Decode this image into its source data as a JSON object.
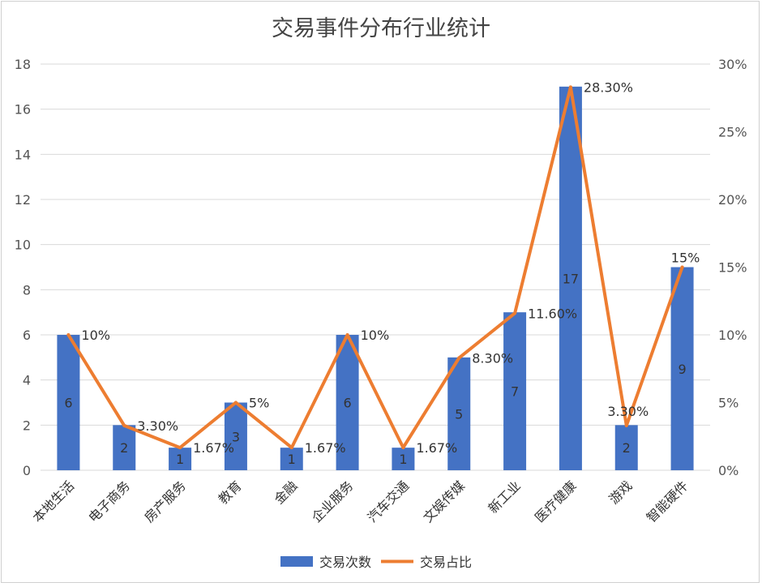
{
  "chart_data": {
    "type": "bar",
    "title": "交易事件分布行业统计",
    "categories": [
      "本地生活",
      "电子商务",
      "房产服务",
      "教育",
      "金融",
      "企业服务",
      "汽车交通",
      "文娱传媒",
      "新工业",
      "医疗健康",
      "游戏",
      "智能硬件"
    ],
    "series": [
      {
        "name": "交易次数",
        "type": "bar",
        "axis": "left",
        "color": "#4472C4",
        "values": [
          6,
          2,
          1,
          3,
          1,
          6,
          1,
          5,
          7,
          17,
          2,
          9
        ],
        "labels": [
          "6",
          "2",
          "1",
          "3",
          "1",
          "6",
          "1",
          "5",
          "7",
          "17",
          "2",
          "9"
        ]
      },
      {
        "name": "交易占比",
        "type": "line",
        "axis": "right",
        "color": "#ED7D31",
        "values": [
          10,
          3.3,
          1.67,
          5,
          1.67,
          10,
          1.67,
          8.3,
          11.6,
          28.3,
          3.3,
          15
        ],
        "labels": [
          "10%",
          "3.30%",
          "1.67%",
          "5%",
          "1.67%",
          "10%",
          "1.67%",
          "8.30%",
          "11.60%",
          "28.30%",
          "3.30%",
          "15%"
        ]
      }
    ],
    "y_left": {
      "min": 0,
      "max": 18,
      "ticks": [
        "0",
        "2",
        "4",
        "6",
        "8",
        "10",
        "12",
        "14",
        "16",
        "18"
      ]
    },
    "y_right": {
      "min": 0,
      "max": 30,
      "ticks": [
        "0%",
        "5%",
        "10%",
        "15%",
        "20%",
        "25%",
        "30%"
      ]
    },
    "grid": true,
    "legend_position": "bottom"
  }
}
